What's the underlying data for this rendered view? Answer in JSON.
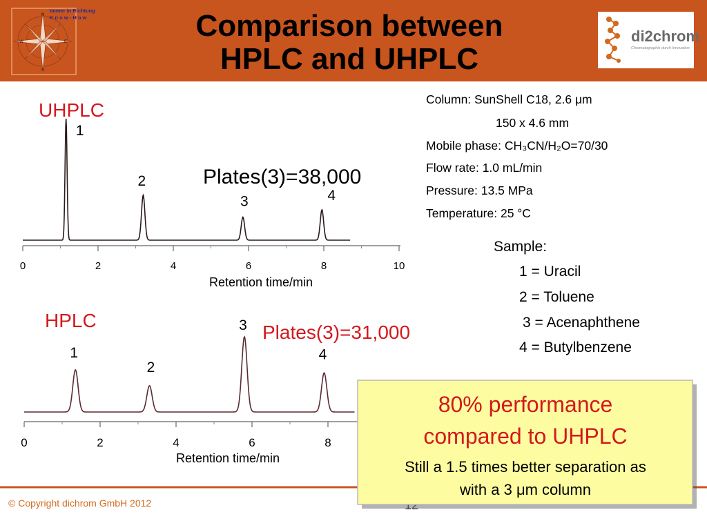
{
  "slide": {
    "title_line1": "Comparison between",
    "title_line2": "HPLC and UHPLC",
    "logo_left_line1": "Immer in Richtung",
    "logo_left_line2": "K n o w - H o w",
    "compass_labels": {
      "n": "N",
      "s": "S",
      "e": "E",
      "w": "W"
    },
    "logo_right_text": "di2chrom",
    "logo_right_tagline": "Chromatographie durch Innovation",
    "footer": "© Copyright dichrom GmbH 2012",
    "page_number": "12",
    "colors": {
      "header_bg": "#c8541e",
      "accent_red": "#d4181e",
      "trace": "#2a1a1a",
      "trace_hplc": "#5a2a32",
      "callout_bg": "#fdfca0",
      "footer_line": "#c8541e"
    }
  },
  "conditions": {
    "column": "Column: SunShell C18, 2.6 μm",
    "dimensions": "150 x 4.6 mm",
    "mobile_phase": "Mobile phase: CH₃CN/H₂O=70/30",
    "flow_rate": "Flow rate: 1.0 mL/min",
    "pressure": "Pressure: 13.5 MPa",
    "temperature": "Temperature: 25 °C"
  },
  "sample": {
    "heading": "Sample:",
    "items": [
      "1 = Uracil",
      "2 = Toluene",
      "3 = Acenaphthene",
      "4 = Butylbenzene"
    ]
  },
  "callout": {
    "headline_line1": "80% performance",
    "headline_line2": "compared to UHPLC",
    "body_line1": "Still a 1.5 times better separation as",
    "body_line2": "with a 3 μm column"
  },
  "chart_data": [
    {
      "type": "line",
      "label": "UHPLC",
      "plates_annotation": "Plates(3)=38,000",
      "xlabel": "Retention time/min",
      "xlim": [
        0,
        10
      ],
      "x_ticks": [
        "0",
        "2",
        "4",
        "6",
        "8",
        "10"
      ],
      "peaks": [
        {
          "label": "1",
          "rt": 1.15,
          "rel_height": 1.0
        },
        {
          "label": "2",
          "rt": 3.2,
          "rel_height": 0.37
        },
        {
          "label": "3",
          "rt": 5.85,
          "rel_height": 0.19
        },
        {
          "label": "4",
          "rt": 7.95,
          "rel_height": 0.25
        }
      ]
    },
    {
      "type": "line",
      "label": "HPLC",
      "plates_annotation": "Plates(3)=31,000",
      "xlabel": "Retention time/min",
      "xlim": [
        0,
        10
      ],
      "x_ticks": [
        "0",
        "2",
        "4",
        "6",
        "8"
      ],
      "peaks": [
        {
          "label": "1",
          "rt": 1.35,
          "rel_height": 0.56
        },
        {
          "label": "2",
          "rt": 3.3,
          "rel_height": 0.35
        },
        {
          "label": "3",
          "rt": 5.8,
          "rel_height": 1.0
        },
        {
          "label": "4",
          "rt": 7.9,
          "rel_height": 0.52
        }
      ]
    }
  ]
}
